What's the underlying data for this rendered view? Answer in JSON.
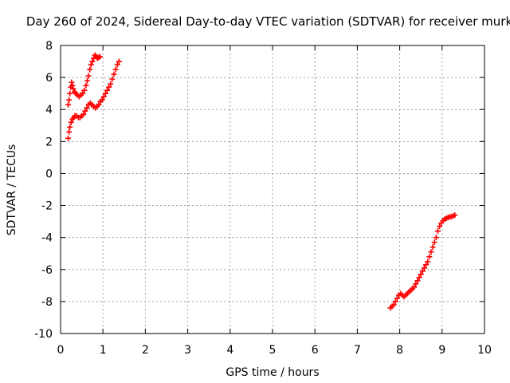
{
  "chart_data": {
    "type": "scatter",
    "title": "Day 260 of 2024, Sidereal Day-to-day VTEC variation (SDTVAR) for receiver murk",
    "xlabel": "GPS time / hours",
    "ylabel": "SDTVAR / TECUs",
    "xlim": [
      0,
      10
    ],
    "ylim": [
      -10,
      8
    ],
    "xticks": [
      "0",
      "1",
      "2",
      "3",
      "4",
      "5",
      "6",
      "7",
      "8",
      "9",
      "10"
    ],
    "yticks": [
      "-10",
      "-8",
      "-6",
      "-4",
      "-2",
      "0",
      "2",
      "4",
      "6",
      "8"
    ],
    "grid": true,
    "marker": "+",
    "color": "#ff0000",
    "series": [
      {
        "name": "",
        "points": [
          [
            0.18,
            4.3
          ],
          [
            0.2,
            4.6
          ],
          [
            0.22,
            5.0
          ],
          [
            0.24,
            5.4
          ],
          [
            0.26,
            5.7
          ],
          [
            0.28,
            5.5
          ],
          [
            0.3,
            5.3
          ],
          [
            0.33,
            5.1
          ],
          [
            0.36,
            5.0
          ],
          [
            0.4,
            4.9
          ],
          [
            0.44,
            4.8
          ],
          [
            0.48,
            4.9
          ],
          [
            0.52,
            5.0
          ],
          [
            0.56,
            5.2
          ],
          [
            0.6,
            5.5
          ],
          [
            0.63,
            5.8
          ],
          [
            0.66,
            6.1
          ],
          [
            0.69,
            6.5
          ],
          [
            0.72,
            6.8
          ],
          [
            0.75,
            7.0
          ],
          [
            0.78,
            7.2
          ],
          [
            0.81,
            7.4
          ],
          [
            0.84,
            7.3
          ],
          [
            0.87,
            7.2
          ],
          [
            0.9,
            7.25
          ],
          [
            0.93,
            7.3
          ]
        ]
      },
      {
        "name": "",
        "points": [
          [
            0.18,
            2.2
          ],
          [
            0.2,
            2.6
          ],
          [
            0.22,
            2.9
          ],
          [
            0.25,
            3.2
          ],
          [
            0.28,
            3.4
          ],
          [
            0.31,
            3.5
          ],
          [
            0.34,
            3.6
          ],
          [
            0.38,
            3.6
          ],
          [
            0.42,
            3.5
          ],
          [
            0.46,
            3.5
          ],
          [
            0.5,
            3.6
          ],
          [
            0.54,
            3.7
          ],
          [
            0.58,
            3.9
          ],
          [
            0.62,
            4.1
          ],
          [
            0.66,
            4.3
          ],
          [
            0.7,
            4.4
          ],
          [
            0.74,
            4.3
          ],
          [
            0.78,
            4.2
          ],
          [
            0.82,
            4.1
          ],
          [
            0.86,
            4.2
          ],
          [
            0.9,
            4.3
          ],
          [
            0.94,
            4.5
          ],
          [
            0.98,
            4.6
          ],
          [
            1.02,
            4.8
          ],
          [
            1.06,
            5.0
          ],
          [
            1.1,
            5.2
          ],
          [
            1.14,
            5.4
          ],
          [
            1.18,
            5.6
          ],
          [
            1.22,
            5.9
          ],
          [
            1.26,
            6.2
          ],
          [
            1.3,
            6.5
          ],
          [
            1.34,
            6.8
          ],
          [
            1.38,
            7.0
          ]
        ]
      },
      {
        "name": "",
        "points": [
          [
            7.78,
            -8.4
          ],
          [
            7.82,
            -8.3
          ],
          [
            7.86,
            -8.2
          ],
          [
            7.9,
            -8.0
          ],
          [
            7.94,
            -7.8
          ],
          [
            7.98,
            -7.6
          ],
          [
            8.02,
            -7.5
          ],
          [
            8.06,
            -7.6
          ],
          [
            8.1,
            -7.7
          ],
          [
            8.14,
            -7.6
          ],
          [
            8.18,
            -7.5
          ],
          [
            8.22,
            -7.4
          ],
          [
            8.26,
            -7.3
          ],
          [
            8.3,
            -7.2
          ],
          [
            8.34,
            -7.1
          ],
          [
            8.38,
            -6.9
          ],
          [
            8.42,
            -6.7
          ],
          [
            8.46,
            -6.5
          ],
          [
            8.5,
            -6.3
          ],
          [
            8.54,
            -6.1
          ],
          [
            8.58,
            -5.9
          ],
          [
            8.62,
            -5.7
          ],
          [
            8.66,
            -5.5
          ],
          [
            8.7,
            -5.2
          ],
          [
            8.74,
            -4.9
          ],
          [
            8.78,
            -4.6
          ],
          [
            8.82,
            -4.3
          ],
          [
            8.86,
            -4.0
          ],
          [
            8.9,
            -3.6
          ],
          [
            8.94,
            -3.3
          ],
          [
            8.98,
            -3.1
          ],
          [
            9.02,
            -2.95
          ],
          [
            9.06,
            -2.85
          ],
          [
            9.1,
            -2.8
          ],
          [
            9.14,
            -2.75
          ],
          [
            9.18,
            -2.7
          ],
          [
            9.22,
            -2.7
          ],
          [
            9.26,
            -2.65
          ],
          [
            9.3,
            -2.6
          ]
        ]
      }
    ]
  }
}
